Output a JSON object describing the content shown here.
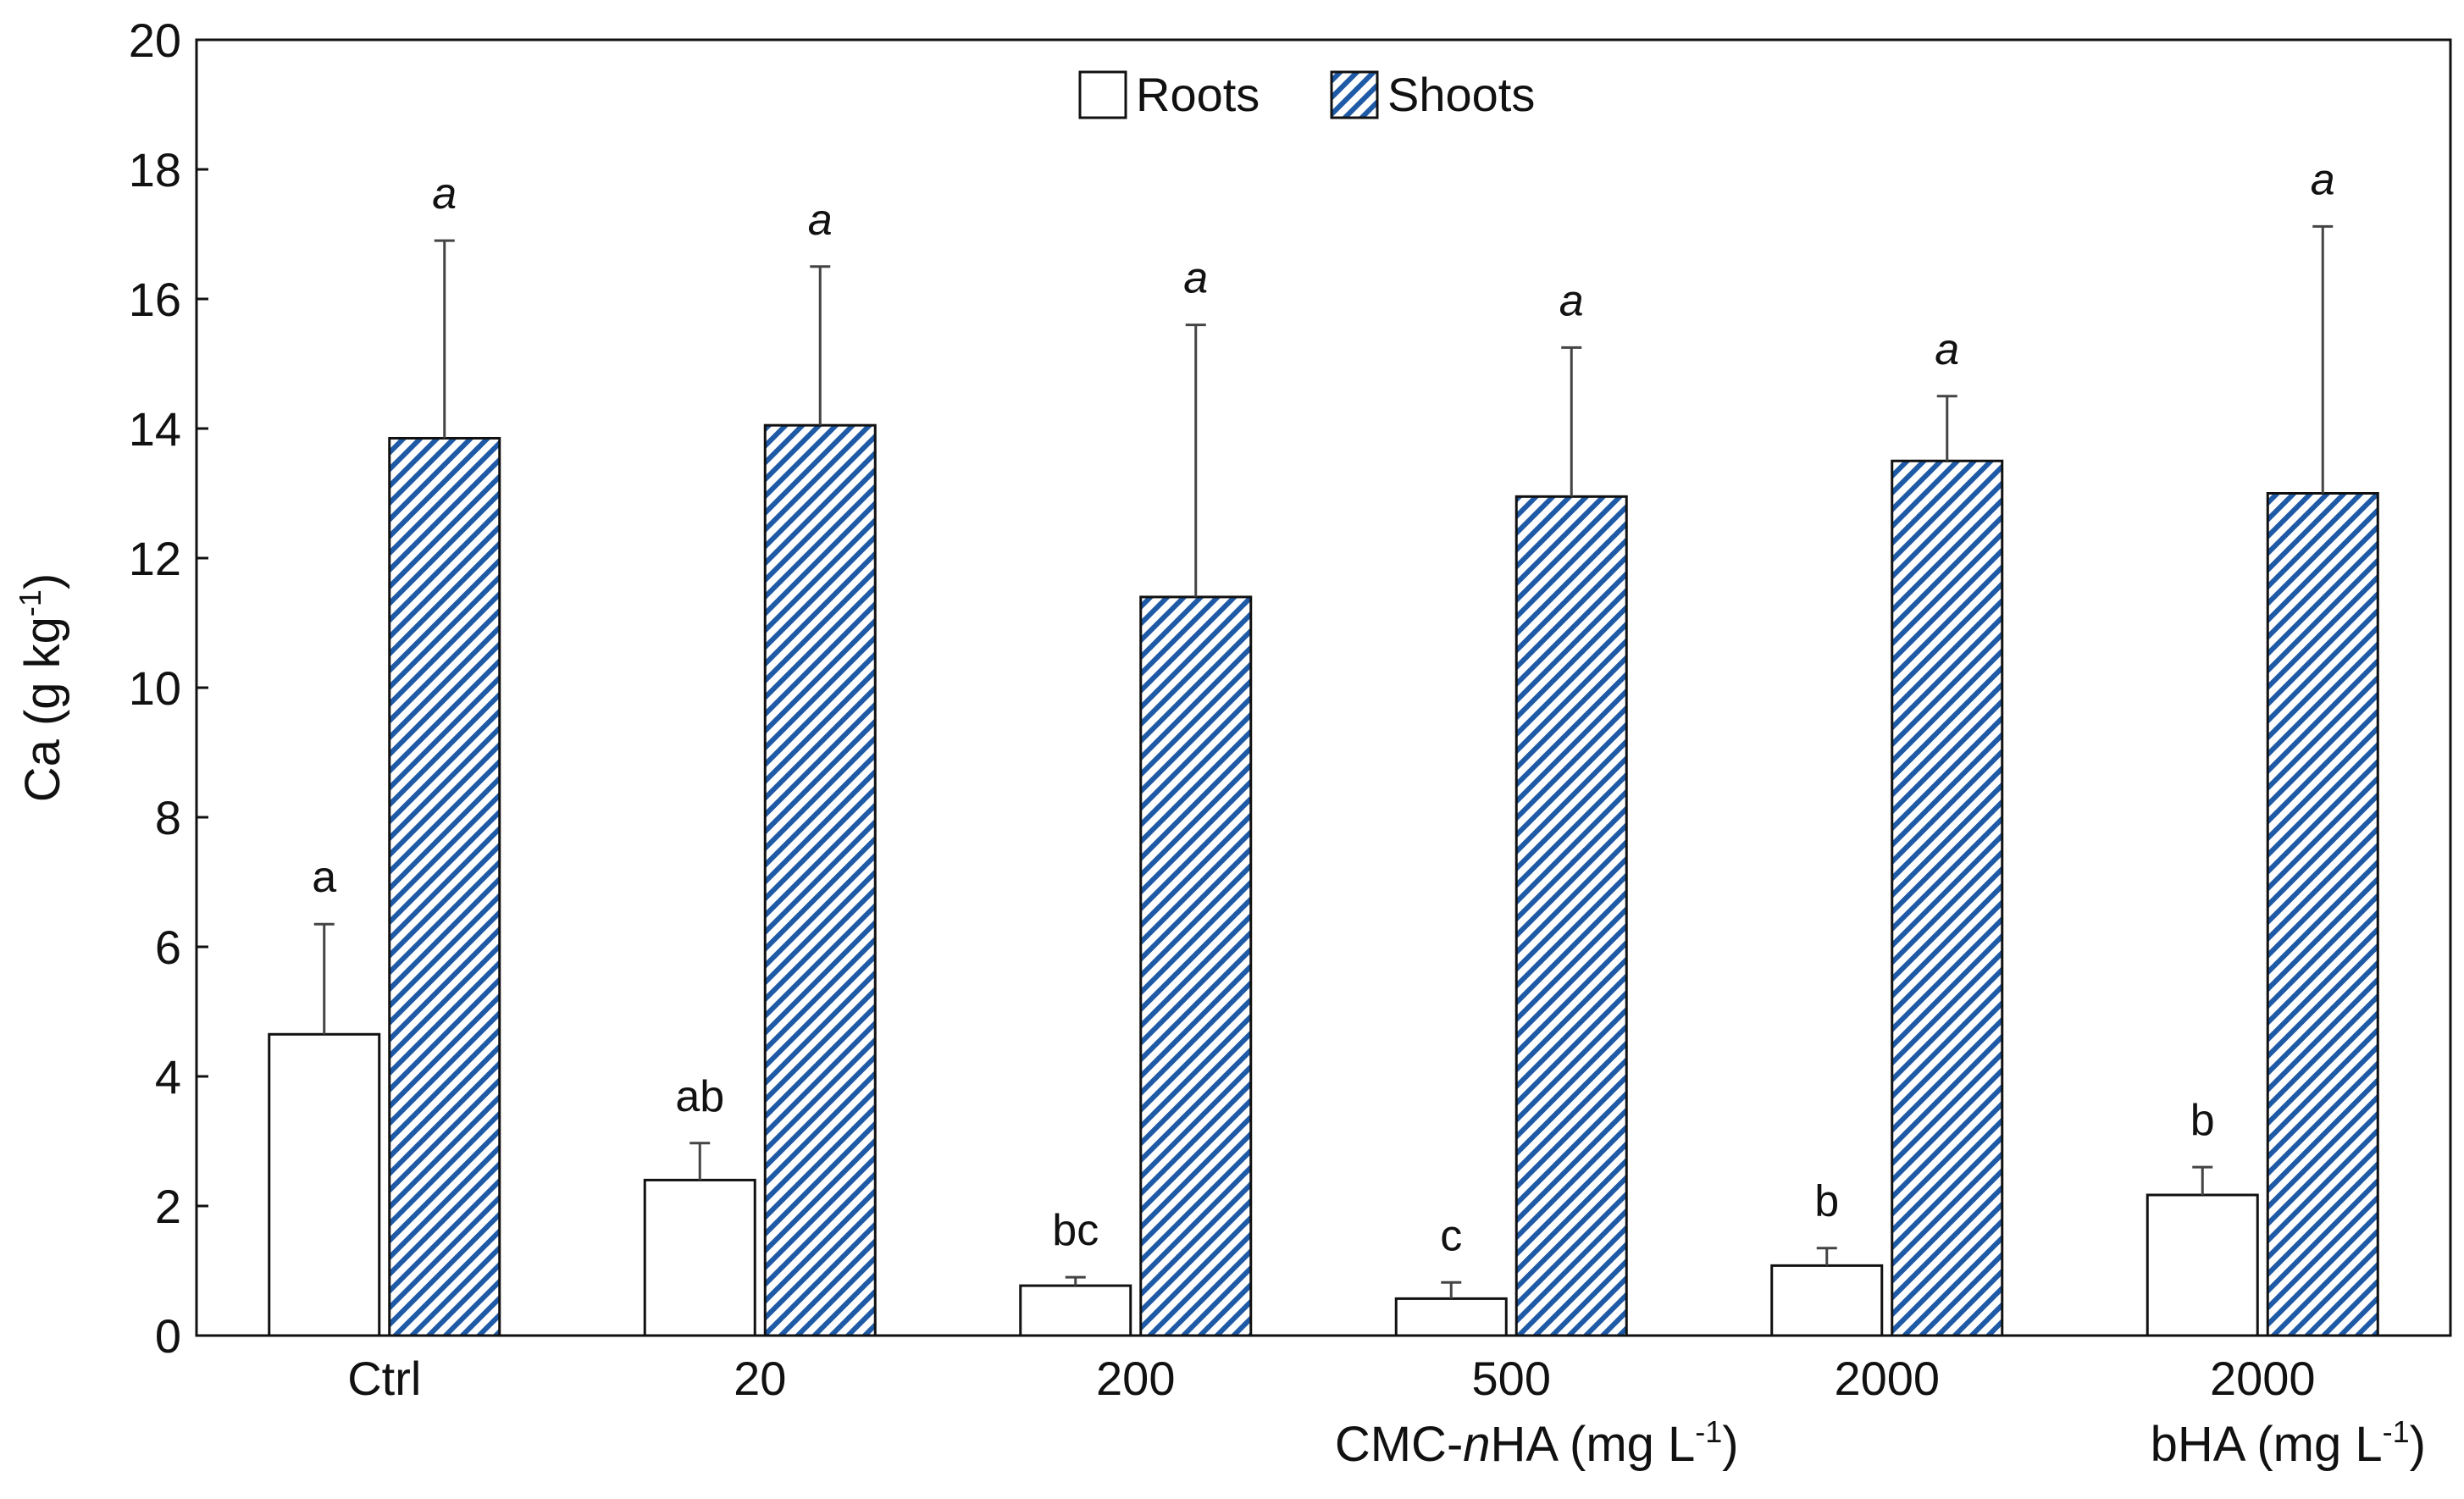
{
  "chart_data": {
    "type": "bar",
    "title": "",
    "ylabel": "Ca (g kg-1)",
    "ylabel_parts": {
      "main": "Ca (g kg",
      "sup": "-1",
      "end": ")"
    },
    "ylim": [
      0,
      20
    ],
    "yticks": [
      0,
      2,
      4,
      6,
      8,
      10,
      12,
      14,
      16,
      18,
      20
    ],
    "categories": [
      "Ctrl",
      "20",
      "200",
      "500",
      "2000",
      "2000"
    ],
    "group_labels": [
      {
        "text_main": "CMC-",
        "text_italic": "n",
        "text_rest": "HA (mg L",
        "sup": "-1",
        "end": ")",
        "full": "CMC-nHA (mg L-1)"
      },
      {
        "text_main": "bHA (mg L",
        "sup": "-1",
        "end": ")",
        "full": "bHA (mg L-1)"
      }
    ],
    "legend": {
      "position": "top-center",
      "entries": [
        "Roots",
        "Shoots"
      ]
    },
    "series": [
      {
        "name": "Roots",
        "pattern": "open",
        "values": [
          4.65,
          2.4,
          0.77,
          0.57,
          1.08,
          2.17
        ],
        "errors": [
          1.7,
          0.57,
          0.13,
          0.25,
          0.27,
          0.43
        ],
        "significance": [
          "a",
          "ab",
          "bc",
          "c",
          "b",
          "b"
        ]
      },
      {
        "name": "Shoots",
        "pattern": "hatched",
        "values": [
          13.85,
          14.05,
          11.4,
          12.95,
          13.5,
          13.0
        ],
        "errors": [
          3.05,
          2.45,
          4.2,
          2.3,
          1.0,
          4.12
        ],
        "significance": [
          "a",
          "a",
          "a",
          "a",
          "a",
          "a"
        ]
      }
    ],
    "colors": {
      "hatch": "#1f5aa6",
      "axis": "#111111",
      "bar_edge": "#111111",
      "error_bar": "#444444"
    }
  }
}
